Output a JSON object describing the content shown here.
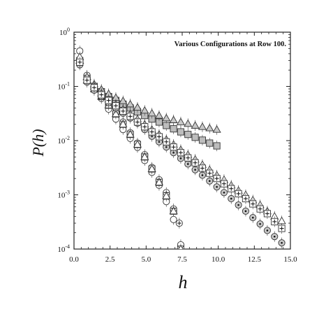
{
  "chart_data": {
    "type": "scatter",
    "title": "Various Configurations at Row 100.",
    "xlabel": "h",
    "ylabel": "P(h)",
    "xlim": [
      0,
      15
    ],
    "ylim": [
      0.0001,
      1
    ],
    "yscale": "log",
    "grid": false,
    "xticks": [
      "0.0",
      "2.5",
      "5.0",
      "7.5",
      "10.0",
      "12.5",
      "15.0"
    ],
    "yticks": [
      {
        "base": "10",
        "exp": "0",
        "value": 1
      },
      {
        "base": "10",
        "exp": "-1",
        "value": 0.1
      },
      {
        "base": "10",
        "exp": "-2",
        "value": 0.01
      },
      {
        "base": "10",
        "exp": "-3",
        "value": 0.001
      },
      {
        "base": "10",
        "exp": "-4",
        "value": 0.0001
      }
    ],
    "series": [
      {
        "marker": "circle-plus",
        "points": [
          [
            0.4,
            0.3
          ],
          [
            0.9,
            0.13
          ],
          [
            1.4,
            0.095
          ],
          [
            1.9,
            0.07
          ],
          [
            2.4,
            0.048
          ],
          [
            2.9,
            0.033
          ],
          [
            3.4,
            0.022
          ],
          [
            3.9,
            0.014
          ],
          [
            4.4,
            0.009
          ],
          [
            4.9,
            0.0055
          ],
          [
            5.4,
            0.0032
          ],
          [
            5.9,
            0.0019
          ],
          [
            6.4,
            0.0011
          ],
          [
            6.9,
            0.00055
          ],
          [
            7.3,
            0.0003
          ]
        ]
      },
      {
        "marker": "circle",
        "points": [
          [
            0.4,
            0.45
          ],
          [
            0.9,
            0.16
          ],
          [
            1.4,
            0.1
          ],
          [
            1.9,
            0.06
          ],
          [
            2.4,
            0.038
          ],
          [
            2.9,
            0.025
          ],
          [
            3.4,
            0.016
          ],
          [
            3.9,
            0.011
          ],
          [
            4.4,
            0.0075
          ],
          [
            4.9,
            0.0043
          ],
          [
            5.4,
            0.0026
          ],
          [
            5.9,
            0.0015
          ],
          [
            6.4,
            0.00075
          ],
          [
            6.9,
            0.00035
          ],
          [
            7.4,
            0.00012
          ]
        ]
      },
      {
        "marker": "triangle-sq",
        "points": [
          [
            0.4,
            0.3
          ],
          [
            0.9,
            0.13
          ],
          [
            1.4,
            0.09
          ],
          [
            1.9,
            0.065
          ],
          [
            2.4,
            0.045
          ],
          [
            2.9,
            0.031
          ],
          [
            3.4,
            0.02
          ],
          [
            3.9,
            0.013
          ],
          [
            4.4,
            0.0085
          ],
          [
            4.9,
            0.005
          ],
          [
            5.4,
            0.003
          ],
          [
            5.9,
            0.0017
          ],
          [
            6.4,
            0.00095
          ],
          [
            6.9,
            0.0005
          ],
          [
            7.4,
            0.0001
          ]
        ]
      },
      {
        "marker": "circle-dot",
        "points": [
          [
            0.4,
            0.25
          ],
          [
            0.9,
            0.12
          ],
          [
            1.4,
            0.085
          ],
          [
            1.9,
            0.065
          ],
          [
            2.4,
            0.05
          ],
          [
            2.9,
            0.04
          ],
          [
            3.4,
            0.032
          ],
          [
            3.9,
            0.026
          ],
          [
            4.4,
            0.021
          ],
          [
            4.9,
            0.016
          ],
          [
            5.4,
            0.012
          ],
          [
            5.9,
            0.0095
          ],
          [
            6.4,
            0.0076
          ],
          [
            6.9,
            0.006
          ],
          [
            7.4,
            0.0047
          ],
          [
            7.9,
            0.0037
          ],
          [
            8.4,
            0.0029
          ],
          [
            8.9,
            0.0023
          ],
          [
            9.4,
            0.0018
          ],
          [
            9.9,
            0.0014
          ],
          [
            10.4,
            0.0011
          ],
          [
            10.9,
            0.00085
          ],
          [
            11.4,
            0.00065
          ],
          [
            11.9,
            0.0005
          ],
          [
            12.4,
            0.00038
          ],
          [
            12.9,
            0.00029
          ],
          [
            13.4,
            0.00022
          ],
          [
            13.9,
            0.00017
          ],
          [
            14.4,
            0.00013
          ]
        ]
      },
      {
        "marker": "square",
        "points": [
          [
            0.4,
            0.28
          ],
          [
            0.9,
            0.14
          ],
          [
            1.4,
            0.1
          ],
          [
            1.9,
            0.08
          ],
          [
            2.4,
            0.065
          ],
          [
            2.9,
            0.055
          ],
          [
            3.4,
            0.047
          ],
          [
            3.9,
            0.04
          ],
          [
            4.4,
            0.034
          ],
          [
            4.9,
            0.029
          ],
          [
            5.4,
            0.025
          ],
          [
            5.9,
            0.022
          ],
          [
            6.4,
            0.019
          ],
          [
            6.9,
            0.0165
          ],
          [
            7.4,
            0.0145
          ],
          [
            7.9,
            0.013
          ],
          [
            8.4,
            0.0115
          ],
          [
            8.9,
            0.0102
          ],
          [
            9.4,
            0.009
          ],
          [
            9.9,
            0.008
          ]
        ]
      },
      {
        "marker": "triangle",
        "points": [
          [
            0.4,
            0.3
          ],
          [
            0.9,
            0.15
          ],
          [
            1.4,
            0.11
          ],
          [
            1.9,
            0.088
          ],
          [
            2.4,
            0.073
          ],
          [
            2.9,
            0.062
          ],
          [
            3.4,
            0.054
          ],
          [
            3.9,
            0.047
          ],
          [
            4.4,
            0.041
          ],
          [
            4.9,
            0.036
          ],
          [
            5.4,
            0.032
          ],
          [
            5.9,
            0.029
          ],
          [
            6.4,
            0.026
          ],
          [
            6.9,
            0.024
          ],
          [
            7.4,
            0.022
          ],
          [
            7.9,
            0.0205
          ],
          [
            8.4,
            0.019
          ],
          [
            8.9,
            0.018
          ],
          [
            9.4,
            0.017
          ],
          [
            9.9,
            0.016
          ]
        ]
      },
      {
        "marker": "triangle-open",
        "points": [
          [
            0.4,
            0.35
          ],
          [
            0.9,
            0.15
          ],
          [
            1.4,
            0.1
          ],
          [
            1.9,
            0.075
          ],
          [
            2.4,
            0.058
          ],
          [
            2.9,
            0.047
          ],
          [
            3.4,
            0.038
          ],
          [
            3.9,
            0.031
          ],
          [
            4.4,
            0.025
          ],
          [
            4.9,
            0.02
          ],
          [
            5.4,
            0.016
          ],
          [
            5.9,
            0.013
          ],
          [
            6.4,
            0.0105
          ],
          [
            6.9,
            0.0085
          ],
          [
            7.4,
            0.0068
          ],
          [
            7.9,
            0.0055
          ],
          [
            8.4,
            0.0045
          ],
          [
            8.9,
            0.0036
          ],
          [
            9.4,
            0.0029
          ],
          [
            9.9,
            0.0023
          ],
          [
            10.4,
            0.0019
          ],
          [
            10.9,
            0.0015
          ],
          [
            11.4,
            0.0012
          ],
          [
            11.9,
            0.001
          ],
          [
            12.4,
            0.0008
          ],
          [
            12.9,
            0.00065
          ],
          [
            13.4,
            0.0005
          ],
          [
            13.9,
            0.0004
          ],
          [
            14.4,
            0.00033
          ]
        ]
      },
      {
        "marker": "square-plus",
        "points": [
          [
            0.4,
            0.28
          ],
          [
            0.9,
            0.13
          ],
          [
            1.4,
            0.095
          ],
          [
            1.9,
            0.07
          ],
          [
            2.4,
            0.055
          ],
          [
            2.9,
            0.044
          ],
          [
            3.4,
            0.035
          ],
          [
            3.9,
            0.028
          ],
          [
            4.4,
            0.022
          ],
          [
            4.9,
            0.018
          ],
          [
            5.4,
            0.0145
          ],
          [
            5.9,
            0.0118
          ],
          [
            6.4,
            0.0095
          ],
          [
            6.9,
            0.0076
          ],
          [
            7.4,
            0.006
          ],
          [
            7.9,
            0.0048
          ],
          [
            8.4,
            0.0039
          ],
          [
            8.9,
            0.0031
          ],
          [
            9.4,
            0.0025
          ],
          [
            9.9,
            0.002
          ],
          [
            10.4,
            0.0016
          ],
          [
            10.9,
            0.0013
          ],
          [
            11.4,
            0.00105
          ],
          [
            11.9,
            0.00085
          ],
          [
            12.4,
            0.00068
          ],
          [
            12.9,
            0.00055
          ],
          [
            13.4,
            0.00045
          ],
          [
            13.9,
            0.00032
          ],
          [
            14.4,
            0.00024
          ]
        ]
      }
    ]
  }
}
